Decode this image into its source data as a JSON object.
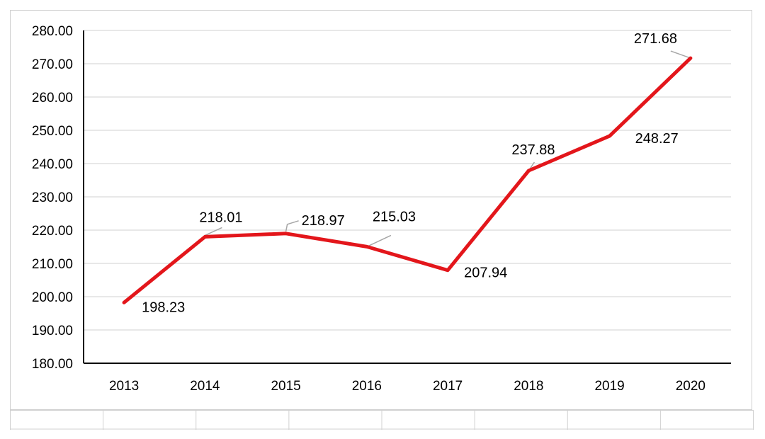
{
  "colors": {
    "series_line": "#e3161b",
    "gridline": "#d9d9d9",
    "axis": "#000000",
    "leader_line": "#a6a6a6",
    "sheet_grid": "#d0d0d0"
  },
  "chart_data": {
    "type": "line",
    "title": "",
    "xlabel": "",
    "ylabel": "",
    "categories": [
      "2013",
      "2014",
      "2015",
      "2016",
      "2017",
      "2018",
      "2019",
      "2020"
    ],
    "series": [
      {
        "values": [
          198.23,
          218.01,
          218.97,
          215.03,
          207.94,
          237.88,
          248.27,
          271.68
        ]
      }
    ],
    "data_labels": [
      "198.23",
      "218.01",
      "218.97",
      "215.03",
      "207.94",
      "237.88",
      "248.27",
      "271.68"
    ],
    "ylim": [
      180,
      280
    ],
    "y_ticks": [
      "180.00",
      "190.00",
      "200.00",
      "210.00",
      "220.00",
      "230.00",
      "240.00",
      "250.00",
      "260.00",
      "270.00",
      "280.00"
    ],
    "grid": true,
    "legend": "none"
  }
}
